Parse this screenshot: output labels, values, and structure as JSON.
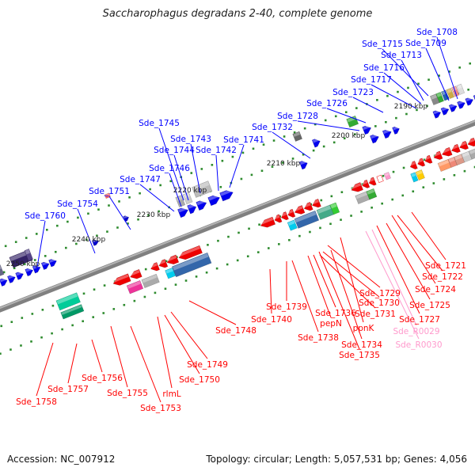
{
  "title": "Saccharophagus degradans 2-40, complete genome",
  "footer": {
    "accession": "Accession: NC_007912",
    "summary": "Topology: circular; Length: 5,057,531 bp; Genes: 4,056"
  },
  "colors": {
    "axis": "#808080",
    "tick": "#2e8b2e",
    "plus_label": "#0000ff",
    "minus_label": "#ff0000",
    "rna_label": "#ff99cc"
  },
  "ticks": [
    "2190 kbp",
    "2200 kbp",
    "2210 kbp",
    "2220 kbp",
    "2230 kbp",
    "2240 kbp",
    "2250 kbp"
  ],
  "plus_strand_genes": [
    "Sde_1708",
    "Sde_1709",
    "Sde_1715",
    "Sde_1713",
    "Sde_1716",
    "Sde_1717",
    "Sde_1723",
    "Sde_1726",
    "Sde_1728",
    "Sde_1732",
    "Sde_1741",
    "Sde_1742",
    "Sde_1743",
    "Sde_1744",
    "Sde_1745",
    "Sde_1746",
    "Sde_1747",
    "Sde_1751",
    "Sde_1754",
    "Sde_1760"
  ],
  "minus_strand_genes": [
    "Sde_1721",
    "Sde_1722",
    "Sde_1724",
    "Sde_1725",
    "Sde_1727",
    "Sde_1729",
    "Sde_1730",
    "Sde_1731",
    "pepN",
    "ppnK",
    "Sde_1736",
    "Sde_1738",
    "Sde_1734",
    "Sde_1735",
    "Sde_1739",
    "Sde_1740",
    "Sde_1748",
    "Sde_1749",
    "Sde_1750",
    "rlmL",
    "Sde_1753",
    "Sde_1755",
    "Sde_1756",
    "Sde_1757",
    "Sde_1758"
  ],
  "rna_genes": [
    "Sde_R0029",
    "Sde_R0030"
  ]
}
